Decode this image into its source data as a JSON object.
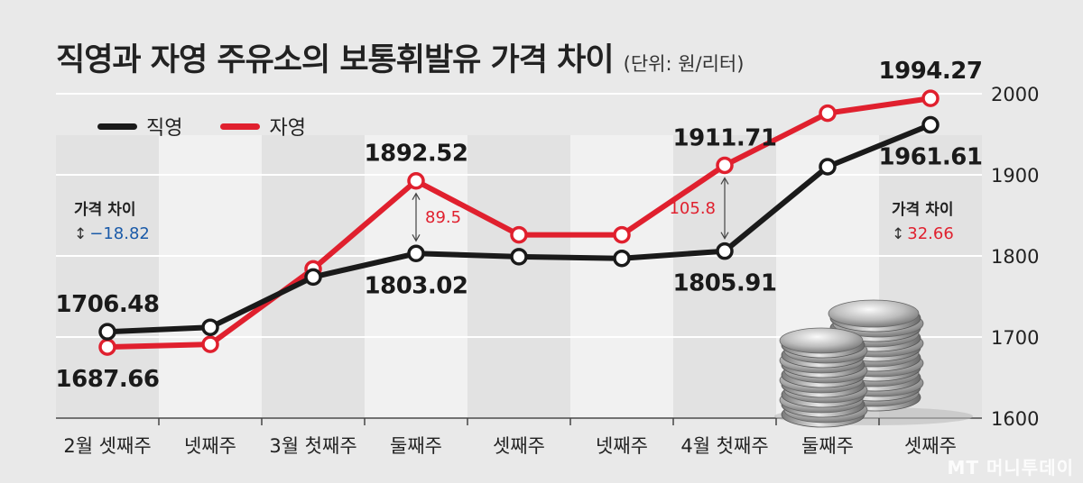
{
  "title": "직영과 자영 주유소의 보통휘발유 가격 차이",
  "unit": "(단위: 원/리터)",
  "legend": [
    {
      "label": "직영",
      "color": "#1a1a1a"
    },
    {
      "label": "자영",
      "color": "#e0202e"
    }
  ],
  "price_diff": {
    "left": {
      "label": "가격 차이",
      "value": "−18.82",
      "color": "#1a5aa8"
    },
    "right": {
      "label": "가격 차이",
      "value": "32.66",
      "color": "#e0202e"
    }
  },
  "gap_labels": [
    {
      "at": "둘째주",
      "value": "89.5"
    },
    {
      "at": "4월 첫째주",
      "value": "105.8"
    }
  ],
  "watermark": "MT 머니투데이",
  "chart_data": {
    "type": "line",
    "categories": [
      "2월 셋째주",
      "넷째주",
      "3월 첫째주",
      "둘째주",
      "셋째주",
      "넷째주",
      "4월 첫째주",
      "둘째주",
      "셋째주"
    ],
    "series": [
      {
        "name": "직영",
        "color": "#1a1a1a",
        "values": [
          1706.48,
          1712,
          1774,
          1803.02,
          1799,
          1797,
          1805.91,
          1910,
          1961.61
        ]
      },
      {
        "name": "자영",
        "color": "#e0202e",
        "values": [
          1687.66,
          1691,
          1784,
          1892.52,
          1826,
          1826,
          1911.71,
          1976,
          1994.27
        ]
      }
    ],
    "data_labels": [
      {
        "series": 0,
        "index": 0,
        "text": "1706.48",
        "pos": "above"
      },
      {
        "series": 1,
        "index": 0,
        "text": "1687.66",
        "pos": "below"
      },
      {
        "series": 1,
        "index": 3,
        "text": "1892.52",
        "pos": "above"
      },
      {
        "series": 0,
        "index": 3,
        "text": "1803.02",
        "pos": "below"
      },
      {
        "series": 1,
        "index": 6,
        "text": "1911.71",
        "pos": "above"
      },
      {
        "series": 0,
        "index": 6,
        "text": "1805.91",
        "pos": "below"
      },
      {
        "series": 1,
        "index": 8,
        "text": "1994.27",
        "pos": "above"
      },
      {
        "series": 0,
        "index": 8,
        "text": "1961.61",
        "pos": "below"
      }
    ],
    "y_ticks": [
      1600,
      1700,
      1800,
      1900,
      2000
    ],
    "ylim": [
      1600,
      2000
    ],
    "y_axis_side": "right",
    "grid": true,
    "legend_position": "top-left"
  }
}
